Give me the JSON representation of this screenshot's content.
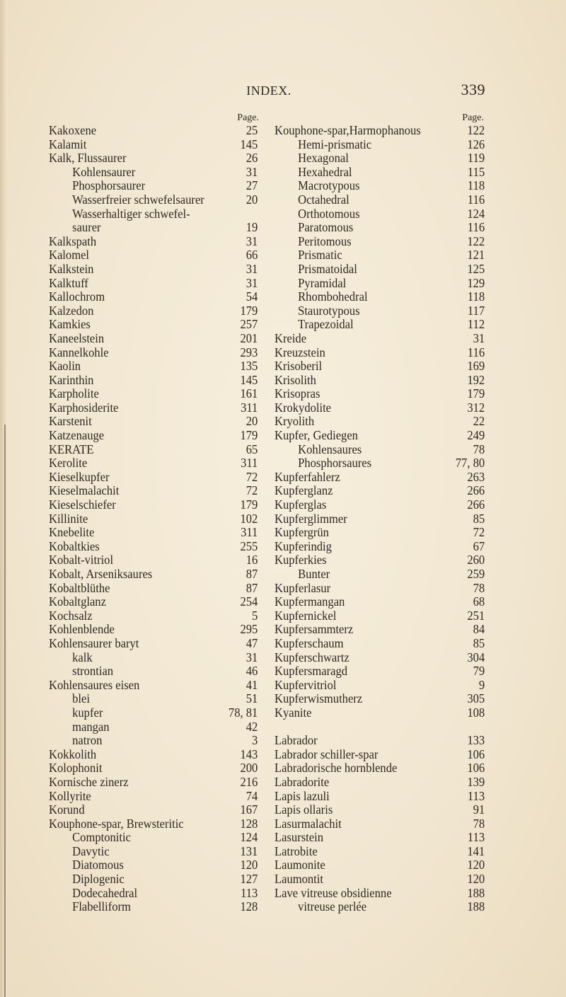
{
  "header": {
    "title": "INDEX.",
    "page_number": "339"
  },
  "page_label": "Page.",
  "left": [
    {
      "t": "Kakoxene",
      "p": "25"
    },
    {
      "t": "Kalamit",
      "p": "145"
    },
    {
      "t": "Kalk, Flussaurer",
      "p": "26"
    },
    {
      "t": "Kohlensaurer",
      "p": "31",
      "sub": true
    },
    {
      "t": "Phosphorsaurer",
      "p": "27",
      "sub": true
    },
    {
      "t": "Wasserfreier schwefelsaurer",
      "p": "20",
      "sub": true
    },
    {
      "t": "Wasserhaltiger schwefel-",
      "p": "",
      "sub": true
    },
    {
      "t": "saurer",
      "p": "19",
      "sub": true
    },
    {
      "t": "Kalkspath",
      "p": "31"
    },
    {
      "t": "Kalomel",
      "p": "66"
    },
    {
      "t": "Kalkstein",
      "p": "31"
    },
    {
      "t": "Kalktuff",
      "p": "31"
    },
    {
      "t": "Kallochrom",
      "p": "54"
    },
    {
      "t": "Kalzedon",
      "p": "179"
    },
    {
      "t": "Kamkies",
      "p": "257"
    },
    {
      "t": "Kaneelstein",
      "p": "201"
    },
    {
      "t": "Kannelkohle",
      "p": "293"
    },
    {
      "t": "Kaolin",
      "p": "135"
    },
    {
      "t": "Karinthin",
      "p": "145"
    },
    {
      "t": "Karpholite",
      "p": "161"
    },
    {
      "t": "Karphosiderite",
      "p": "311"
    },
    {
      "t": "Karstenit",
      "p": "20"
    },
    {
      "t": "Katzenauge",
      "p": "179"
    },
    {
      "t": "KERATE",
      "p": "65"
    },
    {
      "t": "Kerolite",
      "p": "311"
    },
    {
      "t": "Kieselkupfer",
      "p": "72"
    },
    {
      "t": "Kieselmalachit",
      "p": "72"
    },
    {
      "t": "Kieselschiefer",
      "p": "179"
    },
    {
      "t": "Killinite",
      "p": "102"
    },
    {
      "t": "Knebelite",
      "p": "311"
    },
    {
      "t": "Kobaltkies",
      "p": "255"
    },
    {
      "t": "Kobalt-vitriol",
      "p": "16"
    },
    {
      "t": "Kobalt, Arseniksaures",
      "p": "87"
    },
    {
      "t": "Kobaltblüthe",
      "p": "87"
    },
    {
      "t": "Kobaltglanz",
      "p": "254"
    },
    {
      "t": "Kochsalz",
      "p": "5"
    },
    {
      "t": "Kohlenblende",
      "p": "295"
    },
    {
      "t": "Kohlensaurer baryt",
      "p": "47"
    },
    {
      "t": "kalk",
      "p": "31",
      "sub": true
    },
    {
      "t": "strontian",
      "p": "46",
      "sub": true
    },
    {
      "t": "Kohlensaures eisen",
      "p": "41"
    },
    {
      "t": "blei",
      "p": "51",
      "sub": true
    },
    {
      "t": "kupfer",
      "p": "78, 81",
      "sub": true
    },
    {
      "t": "mangan",
      "p": "42",
      "sub": true
    },
    {
      "t": "natron",
      "p": "3",
      "sub": true
    },
    {
      "t": "Kokkolith",
      "p": "143"
    },
    {
      "t": "Kolophonit",
      "p": "200"
    },
    {
      "t": "Kornische zinerz",
      "p": "216"
    },
    {
      "t": "Kollyrite",
      "p": "74"
    },
    {
      "t": "Korund",
      "p": "167"
    },
    {
      "t": "Kouphone-spar, Brewsteritic",
      "p": "128"
    },
    {
      "t": "Comptonitic",
      "p": "124",
      "sub": true
    },
    {
      "t": "Davytic",
      "p": "131",
      "sub": true
    },
    {
      "t": "Diatomous",
      "p": "120",
      "sub": true
    },
    {
      "t": "Diplogenic",
      "p": "127",
      "sub": true
    },
    {
      "t": "Dodecahedral",
      "p": "113",
      "sub": true
    },
    {
      "t": "Flabelliform",
      "p": "128",
      "sub": true
    }
  ],
  "right": [
    {
      "t": "Kouphone-spar,Harmophanous",
      "p": "122"
    },
    {
      "t": "Hemi-prismatic",
      "p": "126",
      "sub": true
    },
    {
      "t": "Hexagonal",
      "p": "119",
      "sub": true
    },
    {
      "t": "Hexahedral",
      "p": "115",
      "sub": true
    },
    {
      "t": "Macrotypous",
      "p": "118",
      "sub": true
    },
    {
      "t": "Octahedral",
      "p": "116",
      "sub": true
    },
    {
      "t": "Orthotomous",
      "p": "124",
      "sub": true
    },
    {
      "t": "Paratomous",
      "p": "116",
      "sub": true
    },
    {
      "t": "Peritomous",
      "p": "122",
      "sub": true
    },
    {
      "t": "Prismatic",
      "p": "121",
      "sub": true
    },
    {
      "t": "Prismatoidal",
      "p": "125",
      "sub": true
    },
    {
      "t": "Pyramidal",
      "p": "129",
      "sub": true
    },
    {
      "t": "Rhombohedral",
      "p": "118",
      "sub": true
    },
    {
      "t": "Staurotypous",
      "p": "117",
      "sub": true
    },
    {
      "t": "Trapezoidal",
      "p": "112",
      "sub": true
    },
    {
      "t": "Kreide",
      "p": "31"
    },
    {
      "t": "Kreuzstein",
      "p": "116"
    },
    {
      "t": "Krisoberil",
      "p": "169"
    },
    {
      "t": "Krisolith",
      "p": "192"
    },
    {
      "t": "Krisopras",
      "p": "179"
    },
    {
      "t": "Krokydolite",
      "p": "312"
    },
    {
      "t": "Kryolith",
      "p": "22"
    },
    {
      "t": "Kupfer, Gediegen",
      "p": "249"
    },
    {
      "t": "Kohlensaures",
      "p": "78",
      "sub": true
    },
    {
      "t": "Phosphorsaures",
      "p": "77, 80",
      "sub": true
    },
    {
      "t": "Kupferfahlerz",
      "p": "263"
    },
    {
      "t": "Kupferglanz",
      "p": "266"
    },
    {
      "t": "Kupferglas",
      "p": "266"
    },
    {
      "t": "Kupferglimmer",
      "p": "85"
    },
    {
      "t": "Kupfergrün",
      "p": "72"
    },
    {
      "t": "Kupferindig",
      "p": "67"
    },
    {
      "t": "Kupferkies",
      "p": "260"
    },
    {
      "t": "Bunter",
      "p": "259",
      "sub": true
    },
    {
      "t": "Kupferlasur",
      "p": "78"
    },
    {
      "t": "Kupfermangan",
      "p": "68"
    },
    {
      "t": "Kupfernickel",
      "p": "251"
    },
    {
      "t": "Kupfersammterz",
      "p": "84"
    },
    {
      "t": "Kupferschaum",
      "p": "85"
    },
    {
      "t": "Kupferschwartz",
      "p": "304"
    },
    {
      "t": "Kupfersmaragd",
      "p": "79"
    },
    {
      "t": "Kupfervitriol",
      "p": "9"
    },
    {
      "t": "Kupferwismutherz",
      "p": "305"
    },
    {
      "t": "Kyanite",
      "p": "108"
    },
    {
      "t": "",
      "p": ""
    },
    {
      "t": "Labrador",
      "p": "133"
    },
    {
      "t": "Labrador schiller-spar",
      "p": "106"
    },
    {
      "t": "Labradorische hornblende",
      "p": "106"
    },
    {
      "t": "Labradorite",
      "p": "139"
    },
    {
      "t": "Lapis lazuli",
      "p": "113"
    },
    {
      "t": "Lapis ollaris",
      "p": "91"
    },
    {
      "t": "Lasurmalachit",
      "p": "78"
    },
    {
      "t": "Lasurstein",
      "p": "113"
    },
    {
      "t": "Latrobite",
      "p": "141"
    },
    {
      "t": "Laumonite",
      "p": "120"
    },
    {
      "t": "Laumontit",
      "p": "120"
    },
    {
      "t": "Lave vitreuse obsidienne",
      "p": "188"
    },
    {
      "t": "vitreuse perlée",
      "p": "188",
      "sub": true
    }
  ]
}
